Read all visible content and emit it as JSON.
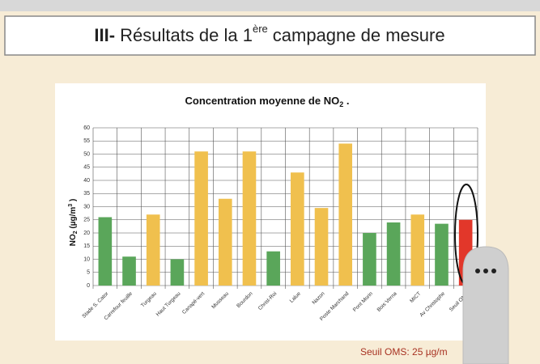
{
  "slide": {
    "title_prefix": "III-",
    "title_text": "Résultats de la 1",
    "title_sup": "ère",
    "title_rest": "campagne de mesure",
    "footer": "Seuil OMS: 25 µg/m"
  },
  "chart_data": {
    "type": "bar",
    "title": "Concentration moyenne de NO",
    "title_sub": "2",
    "title_end": " .",
    "y_label_parts": [
      "NO",
      "2",
      " (µg/m",
      "3",
      " )"
    ],
    "categories": [
      "Stade S. Cator",
      "Carrefour feuille",
      "Turgeau",
      "Haut Turgeau",
      "Canapé-vert",
      "Musseau",
      "Bourdon",
      "Christ-Roi",
      "Lalue",
      "Nazon",
      "Poste Marchand",
      "Pont Morin",
      "Bois Verna",
      "MICT",
      "Av Christophe",
      "Seuil OMS"
    ],
    "values": [
      26,
      11,
      27,
      10,
      51,
      33,
      51,
      13,
      43,
      29.5,
      54,
      20,
      24,
      27,
      23.5,
      25
    ],
    "colors": [
      "#5aa65a",
      "#5aa65a",
      "#f0c04e",
      "#5aa65a",
      "#f0c04e",
      "#f0c04e",
      "#f0c04e",
      "#5aa65a",
      "#f0c04e",
      "#f0c04e",
      "#f0c04e",
      "#5aa65a",
      "#5aa65a",
      "#f0c04e",
      "#5aa65a",
      "#e2372a"
    ],
    "ylim": [
      0,
      60
    ],
    "yticks": [
      0,
      5,
      10,
      15,
      20,
      25,
      30,
      35,
      40,
      45,
      50,
      55,
      60
    ],
    "grid": true
  }
}
